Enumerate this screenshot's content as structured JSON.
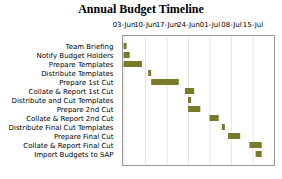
{
  "chart_data": {
    "type": "gantt",
    "title": "Annual Budget Timeline",
    "orientation": "horizontal",
    "categories": [
      "Team Briefing",
      "Notify Budget Holders",
      "Prepare Templates",
      "Distribute Templates",
      "Prepare 1st Cut",
      "Collate & Report 1st Cut",
      "Distribute and Cut Templates",
      "Prepare 2nd Cut",
      "Collate & Report 2nd Cut",
      "Distribute Final Cut Templates",
      "Prepare Final Cut",
      "Collate & Report Final Cut",
      "Import Budgets to SAP"
    ],
    "start": [
      0,
      0,
      0,
      8,
      9,
      20,
      21,
      21,
      28,
      32,
      34,
      41,
      43
    ],
    "values": [
      1,
      2,
      6,
      1,
      9,
      3,
      1,
      4,
      3,
      1,
      4,
      4,
      2
    ],
    "color": "#7a7a2a",
    "xlim": [
      -0.5,
      49
    ],
    "xticks": [
      {
        "value": 0,
        "label": "03-Jun"
      },
      {
        "value": 7,
        "label": "10-Jun"
      },
      {
        "value": 14,
        "label": "17-Jun"
      },
      {
        "value": 21,
        "label": "24-Jun"
      },
      {
        "value": 28,
        "label": "01-Jul"
      },
      {
        "value": 35,
        "label": "08-Jul"
      },
      {
        "value": 42,
        "label": "15-Jul"
      },
      {
        "value": 49,
        "label": null
      }
    ],
    "grid": true
  }
}
